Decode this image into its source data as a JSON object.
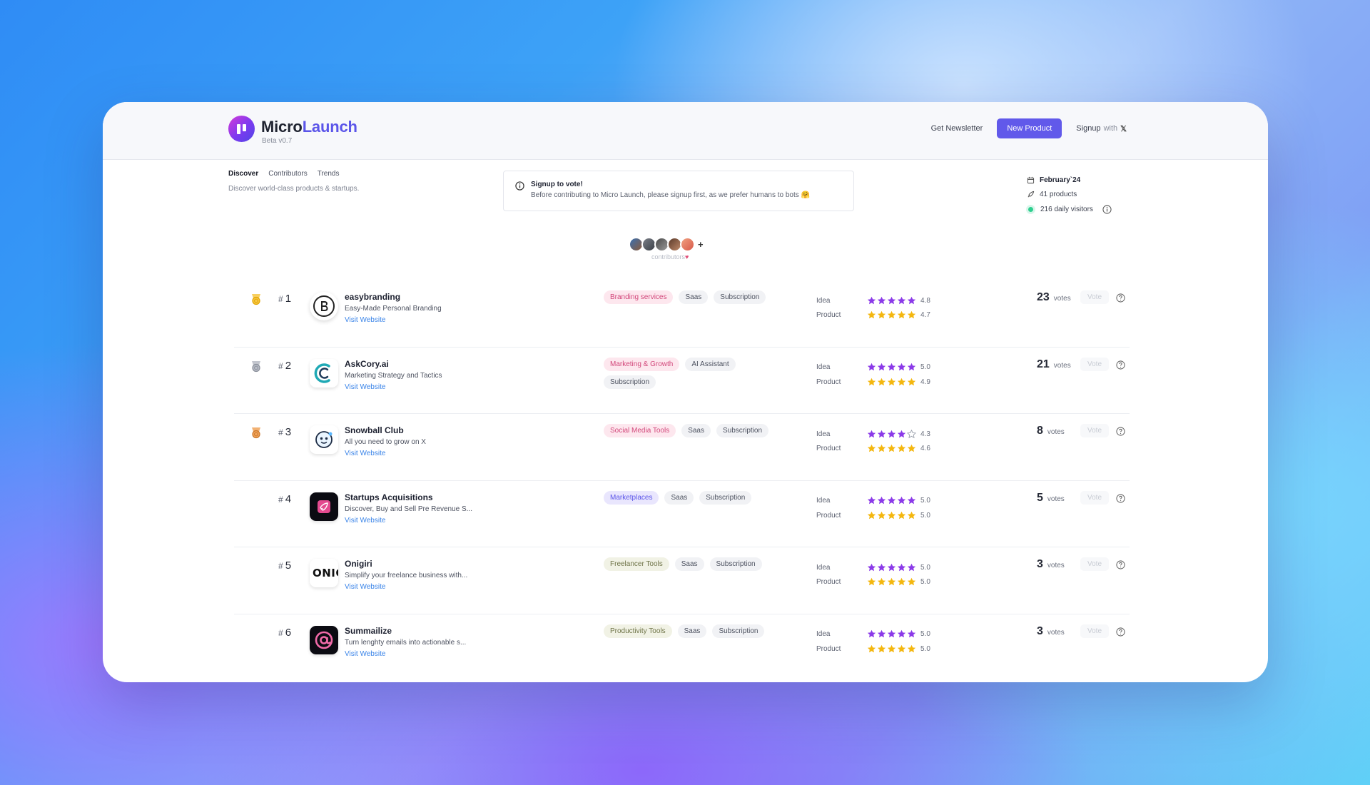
{
  "app": {
    "brand_first": "Micro",
    "brand_second": "Launch",
    "version": "Beta v0.7",
    "accent": "#6159ea"
  },
  "nav": {
    "newsletter": "Get Newsletter",
    "new_product": "New Product",
    "signup": "Signup",
    "signup_with": "with"
  },
  "tabs": [
    {
      "label": "Discover",
      "active": true
    },
    {
      "label": "Contributors",
      "active": false
    },
    {
      "label": "Trends",
      "active": false
    }
  ],
  "tagline": "Discover world-class products & startups.",
  "notice": {
    "title": "Signup to vote!",
    "body": "Before contributing to Micro Launch, please signup first, as we prefer humans to bots 🤗"
  },
  "stats": {
    "date": "February`24",
    "products": "41 products",
    "visitors": "216 daily visitors"
  },
  "contributors": {
    "label": "contributors",
    "heart": "♥",
    "plus": "+"
  },
  "products": [
    {
      "rank": "1",
      "name": "easybranding",
      "desc": "Easy-Made Personal Branding",
      "link": "Visit Website",
      "tags": [
        {
          "label": "Branding services",
          "style": "pink"
        },
        {
          "label": "Saas",
          "style": "gray"
        },
        {
          "label": "Subscription",
          "style": "gray"
        }
      ],
      "idea_label": "Idea",
      "product_label": "Product",
      "idea": "4.8",
      "product": "4.7",
      "idea_stars": 5,
      "product_stars": 5,
      "votes": "23",
      "votes_label": "votes",
      "vote_btn": "Vote",
      "medal": "gold",
      "logo": "b"
    },
    {
      "rank": "2",
      "name": "AskCory.ai",
      "desc": "Marketing Strategy and Tactics",
      "link": "Visit Website",
      "tags": [
        {
          "label": "Marketing & Growth",
          "style": "pink"
        },
        {
          "label": "AI Assistant",
          "style": "gray"
        },
        {
          "label": "Subscription",
          "style": "gray"
        }
      ],
      "idea_label": "Idea",
      "product_label": "Product",
      "idea": "5.0",
      "product": "4.9",
      "idea_stars": 5,
      "product_stars": 5,
      "votes": "21",
      "votes_label": "votes",
      "vote_btn": "Vote",
      "medal": "silver",
      "logo": "c"
    },
    {
      "rank": "3",
      "name": "Snowball Club",
      "desc": "All you need to grow on X",
      "link": "Visit Website",
      "tags": [
        {
          "label": "Social Media Tools",
          "style": "pink"
        },
        {
          "label": "Saas",
          "style": "gray"
        },
        {
          "label": "Subscription",
          "style": "gray"
        }
      ],
      "idea_label": "Idea",
      "product_label": "Product",
      "idea": "4.3",
      "product": "4.6",
      "idea_stars": 4,
      "product_stars": 5,
      "votes": "8",
      "votes_label": "votes",
      "vote_btn": "Vote",
      "medal": "bronze",
      "logo": "snow"
    },
    {
      "rank": "4",
      "name": "Startups Acquisitions",
      "desc": "Discover, Buy and Sell Pre Revenue S...",
      "link": "Visit Website",
      "tags": [
        {
          "label": "Marketplaces",
          "style": "purple"
        },
        {
          "label": "Saas",
          "style": "gray"
        },
        {
          "label": "Subscription",
          "style": "gray"
        }
      ],
      "idea_label": "Idea",
      "product_label": "Product",
      "idea": "5.0",
      "product": "5.0",
      "idea_stars": 5,
      "product_stars": 5,
      "votes": "5",
      "votes_label": "votes",
      "vote_btn": "Vote",
      "medal": "",
      "logo": "rocket"
    },
    {
      "rank": "5",
      "name": "Onigiri",
      "desc": "Simplify your freelance business with...",
      "link": "Visit Website",
      "tags": [
        {
          "label": "Freelancer Tools",
          "style": "olive"
        },
        {
          "label": "Saas",
          "style": "gray"
        },
        {
          "label": "Subscription",
          "style": "gray"
        }
      ],
      "idea_label": "Idea",
      "product_label": "Product",
      "idea": "5.0",
      "product": "5.0",
      "idea_stars": 5,
      "product_stars": 5,
      "votes": "3",
      "votes_label": "votes",
      "vote_btn": "Vote",
      "medal": "",
      "logo": "onig",
      "logo_text": "ONIG"
    },
    {
      "rank": "6",
      "name": "Summailize",
      "desc": "Turn lenghty emails into actionable s...",
      "link": "Visit Website",
      "tags": [
        {
          "label": "Productivity Tools",
          "style": "olive"
        },
        {
          "label": "Saas",
          "style": "gray"
        },
        {
          "label": "Subscription",
          "style": "gray"
        }
      ],
      "idea_label": "Idea",
      "product_label": "Product",
      "idea": "5.0",
      "product": "5.0",
      "idea_stars": 5,
      "product_stars": 5,
      "votes": "3",
      "votes_label": "votes",
      "vote_btn": "Vote",
      "medal": "",
      "logo": "at"
    }
  ]
}
